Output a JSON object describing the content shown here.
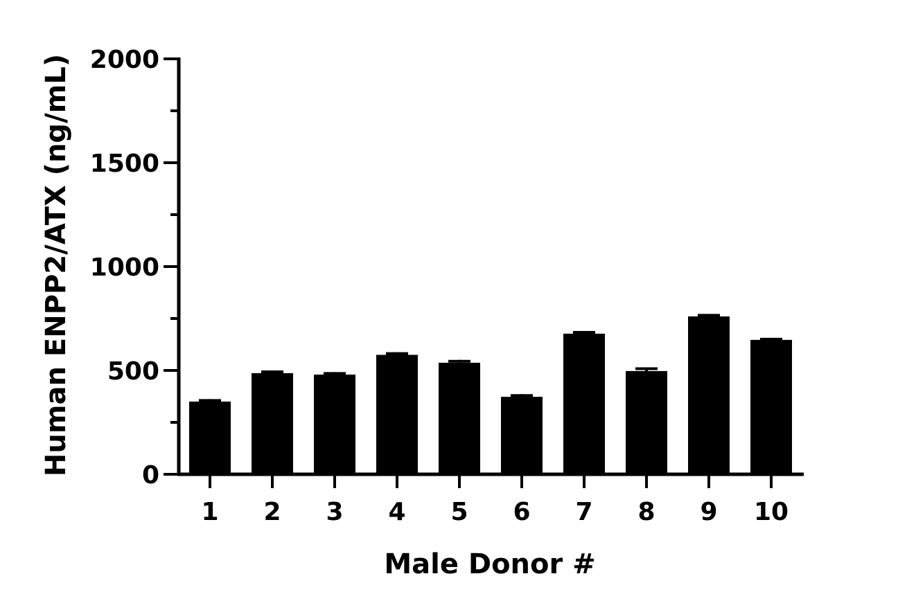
{
  "chart_data": {
    "type": "bar",
    "title": "",
    "xlabel": "Male Donor #",
    "ylabel": "Human ENPP2/ATX (ng/mL)",
    "categories": [
      "1",
      "2",
      "3",
      "4",
      "5",
      "6",
      "7",
      "8",
      "9",
      "10"
    ],
    "values": [
      350,
      487,
      480,
      575,
      537,
      373,
      677,
      497,
      760,
      647
    ],
    "error_upper": [
      362,
      500,
      492,
      588,
      551,
      386,
      690,
      515,
      772,
      657
    ],
    "ylim": [
      0,
      2000
    ],
    "yticks": [
      "0",
      "500",
      "1000",
      "1500",
      "2000"
    ],
    "y_minor_step": 250,
    "grid": false,
    "bar_color": "#000000",
    "axis_color": "#000000"
  }
}
